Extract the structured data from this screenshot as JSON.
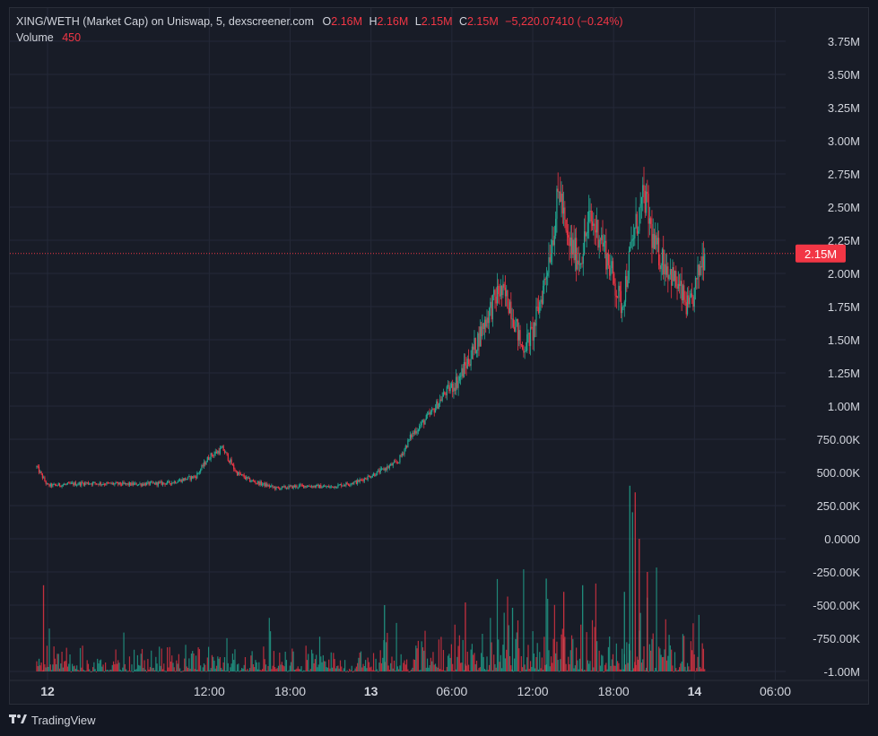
{
  "legend": {
    "title": "XING/WETH (Market Cap) on Uniswap, 5, dexscreener.com",
    "o_label": "O",
    "o_value": "2.16M",
    "h_label": "H",
    "h_value": "2.16M",
    "l_label": "L",
    "l_value": "2.15M",
    "c_label": "C",
    "c_value": "2.15M",
    "change": "−5,220.07410 (−0.24%)",
    "volume_label": "Volume",
    "volume_value": "450"
  },
  "price_tag": "2.15M",
  "footer": {
    "brand": "TradingView"
  },
  "colors": {
    "up": "#22ab94",
    "down": "#f23645",
    "background": "#181c27",
    "grid": "#242938",
    "text": "#d1d4dc"
  },
  "chart_data": {
    "type": "candlestick",
    "y_axis": {
      "ticks": [
        {
          "value": 3750000,
          "label": "3.75M"
        },
        {
          "value": 3500000,
          "label": "3.50M"
        },
        {
          "value": 3250000,
          "label": "3.25M"
        },
        {
          "value": 3000000,
          "label": "3.00M"
        },
        {
          "value": 2750000,
          "label": "2.75M"
        },
        {
          "value": 2500000,
          "label": "2.50M"
        },
        {
          "value": 2250000,
          "label": "2.25M"
        },
        {
          "value": 2000000,
          "label": "2.00M"
        },
        {
          "value": 1750000,
          "label": "1.75M"
        },
        {
          "value": 1500000,
          "label": "1.50M"
        },
        {
          "value": 1250000,
          "label": "1.25M"
        },
        {
          "value": 1000000,
          "label": "1.00M"
        },
        {
          "value": 750000,
          "label": "750.00K"
        },
        {
          "value": 500000,
          "label": "500.00K"
        },
        {
          "value": 250000,
          "label": "250.00K"
        },
        {
          "value": 0,
          "label": "0.0000"
        },
        {
          "value": -250000,
          "label": "-250.00K"
        },
        {
          "value": -500000,
          "label": "-500.00K"
        },
        {
          "value": -750000,
          "label": "-750.00K"
        },
        {
          "value": -1000000,
          "label": "-1.00M"
        }
      ]
    },
    "x_axis": {
      "ticks": [
        {
          "hours": 0,
          "label": "12",
          "bold": true
        },
        {
          "hours": 12,
          "label": "12:00",
          "bold": false
        },
        {
          "hours": 18,
          "label": "18:00",
          "bold": false
        },
        {
          "hours": 24,
          "label": "13",
          "bold": true
        },
        {
          "hours": 30,
          "label": "06:00",
          "bold": false
        },
        {
          "hours": 36,
          "label": "12:00",
          "bold": false
        },
        {
          "hours": 42,
          "label": "18:00",
          "bold": false
        },
        {
          "hours": 48,
          "label": "14",
          "bold": true
        },
        {
          "hours": 54,
          "label": "06:00",
          "bold": false
        }
      ]
    },
    "last_price": 2150000,
    "path": [
      [
        -0.8,
        540000
      ],
      [
        0,
        400000
      ],
      [
        3,
        420000
      ],
      [
        6,
        410000
      ],
      [
        9,
        420000
      ],
      [
        11,
        470000
      ],
      [
        12,
        620000
      ],
      [
        13,
        680000
      ],
      [
        14,
        500000
      ],
      [
        15,
        440000
      ],
      [
        17,
        380000
      ],
      [
        19,
        400000
      ],
      [
        21,
        390000
      ],
      [
        23,
        430000
      ],
      [
        24.5,
        500000
      ],
      [
        26,
        580000
      ],
      [
        27,
        780000
      ],
      [
        28.5,
        950000
      ],
      [
        29.5,
        1100000
      ],
      [
        30.5,
        1200000
      ],
      [
        31.5,
        1400000
      ],
      [
        32.5,
        1650000
      ],
      [
        33.5,
        1870000
      ],
      [
        34.3,
        1780000
      ],
      [
        35.2,
        1430000
      ],
      [
        36,
        1550000
      ],
      [
        36.8,
        1900000
      ],
      [
        37.5,
        2300000
      ],
      [
        38,
        2650000
      ],
      [
        38.5,
        2250000
      ],
      [
        39.5,
        2100000
      ],
      [
        40.2,
        2400000
      ],
      [
        41,
        2300000
      ],
      [
        42,
        1950000
      ],
      [
        42.6,
        1750000
      ],
      [
        43.5,
        2300000
      ],
      [
        44.3,
        2580000
      ],
      [
        45,
        2200000
      ],
      [
        46,
        2050000
      ],
      [
        47,
        1850000
      ],
      [
        47.6,
        1720000
      ],
      [
        48,
        1850000
      ],
      [
        48.5,
        2100000
      ],
      [
        48.8,
        2150000
      ]
    ],
    "volume_spikes": [
      {
        "hours": 43.2,
        "value": 1400000
      },
      {
        "hours": 43.6,
        "value": 1350000
      },
      {
        "hours": 43.4,
        "value": 1200000
      },
      {
        "hours": 43.9,
        "value": 1000000
      },
      {
        "hours": 42.8,
        "value": 600000
      },
      {
        "hours": 44.5,
        "value": 750000
      },
      {
        "hours": 37,
        "value": 700000
      },
      {
        "hours": 38.3,
        "value": 600000
      },
      {
        "hours": 39.7,
        "value": 650000
      },
      {
        "hours": -0.3,
        "value": 650000
      },
      {
        "hours": 25,
        "value": 500000
      },
      {
        "hours": 31,
        "value": 520000
      },
      {
        "hours": 34.5,
        "value": 480000
      }
    ]
  }
}
